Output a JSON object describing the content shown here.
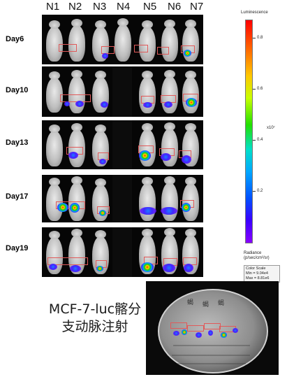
{
  "columns": [
    "N1",
    "N2",
    "N3",
    "N4",
    "N5",
    "N6",
    "N7"
  ],
  "days": [
    "Day6",
    "Day10",
    "Day13",
    "Day17",
    "Day19"
  ],
  "colorbar": {
    "title": "Luminescence",
    "ticks": [
      "0.8",
      "0.6",
      "0.4",
      "0.2"
    ],
    "exponent": "x10⁷",
    "radiance_label": "Radiance",
    "radiance_unit": "(p/sec/cm²/sr)",
    "scale_title": "Color Scale",
    "scale_min": "Min = 9.04e4",
    "scale_max": "Max = 8.81e6"
  },
  "caption": {
    "line1": "MCF-7-luc髂分",
    "line2": "支动脉注射"
  },
  "dish_labels": [
    "蝎",
    "蝎",
    "蝎"
  ]
}
